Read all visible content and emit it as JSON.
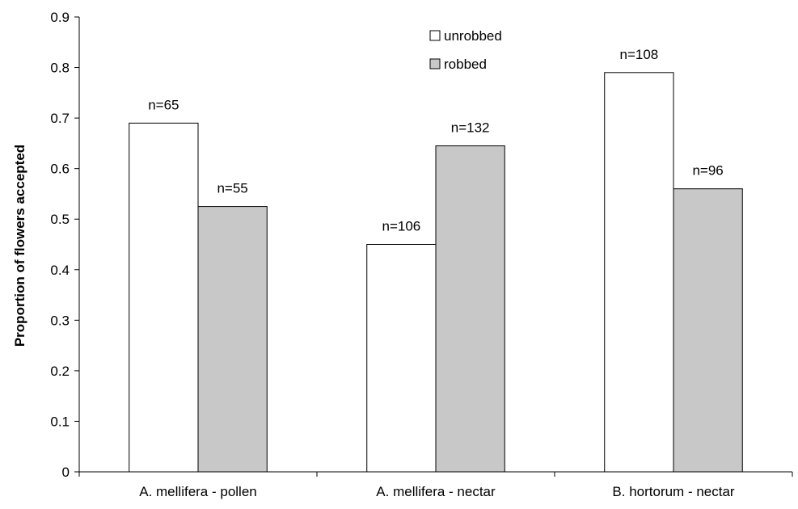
{
  "chart_data": {
    "type": "bar",
    "title": "",
    "xlabel": "",
    "ylabel": "Proportion of flowers accepted",
    "ylim": [
      0,
      0.9
    ],
    "yticks": [
      "0",
      "0.1",
      "0.2",
      "0.3",
      "0.4",
      "0.5",
      "0.6",
      "0.7",
      "0.8",
      "0.9"
    ],
    "categories": [
      "A. mellifera - pollen",
      "A. mellifera - nectar",
      "B. hortorum - nectar"
    ],
    "series": [
      {
        "name": "unrobbed",
        "color": "#ffffff",
        "values": [
          0.69,
          0.45,
          0.79
        ],
        "labels": [
          "n=65",
          "n=106",
          "n=108"
        ]
      },
      {
        "name": "robbed",
        "color": "#c8c8c8",
        "values": [
          0.525,
          0.645,
          0.56
        ],
        "labels": [
          "n=55",
          "n=132",
          "n=96"
        ]
      }
    ],
    "grid": false,
    "legend_position": "top-center"
  }
}
